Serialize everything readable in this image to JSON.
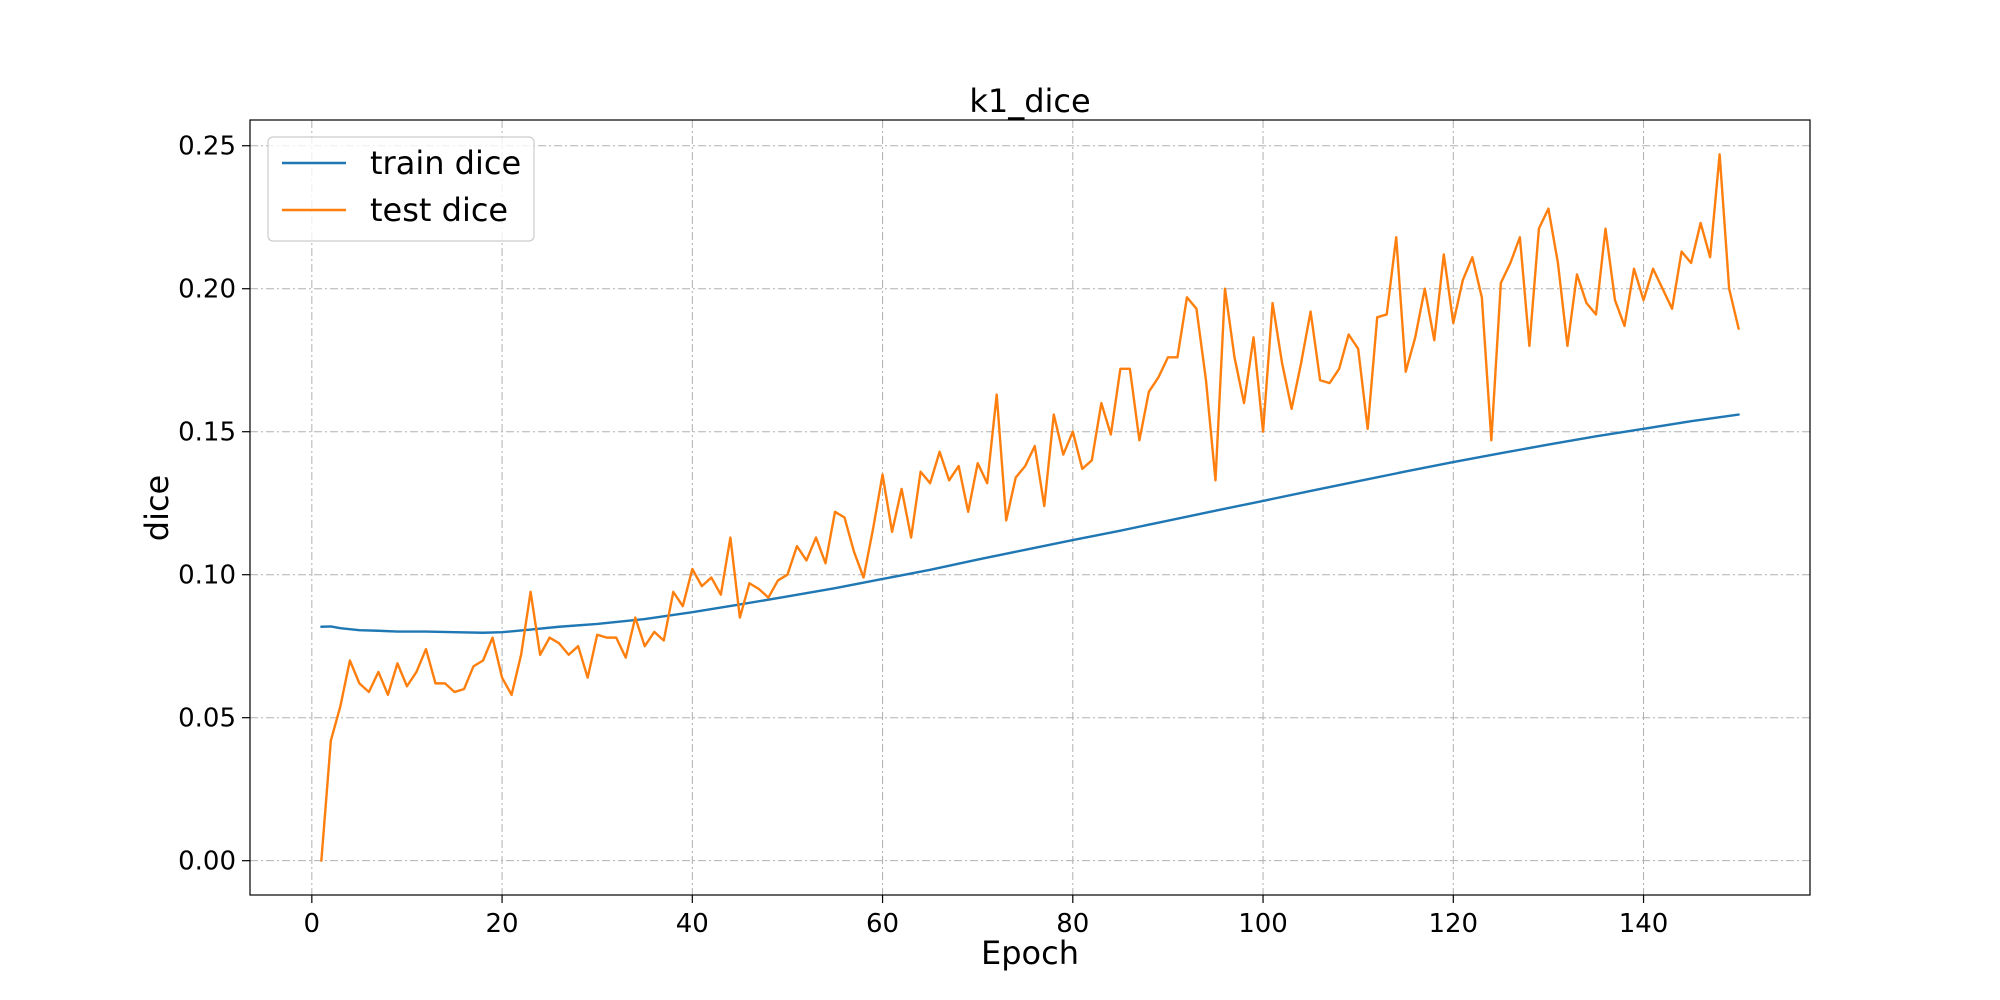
{
  "chart_data": {
    "type": "line",
    "title": "k1_dice",
    "xlabel": "Epoch",
    "ylabel": "dice",
    "xlim": [
      -6.5,
      157.5
    ],
    "ylim": [
      -0.012,
      0.259
    ],
    "xticks": [
      0,
      20,
      40,
      60,
      80,
      100,
      120,
      140
    ],
    "xtick_labels": [
      "0",
      "20",
      "40",
      "60",
      "80",
      "100",
      "120",
      "140"
    ],
    "yticks": [
      0.0,
      0.05,
      0.1,
      0.15,
      0.2,
      0.25
    ],
    "ytick_labels": [
      "0.00",
      "0.05",
      "0.10",
      "0.15",
      "0.20",
      "0.25"
    ],
    "grid": true,
    "legend_position": "top-left",
    "series": [
      {
        "name": "train dice",
        "color": "#1f77b4",
        "x": [
          1,
          2,
          3,
          5,
          7,
          9,
          12,
          15,
          18,
          20,
          23,
          26,
          30,
          35,
          40,
          45,
          50,
          55,
          60,
          65,
          70,
          75,
          80,
          85,
          90,
          95,
          100,
          105,
          110,
          115,
          120,
          125,
          130,
          135,
          140,
          145,
          150
        ],
        "y": [
          0.0818,
          0.0819,
          0.0813,
          0.0806,
          0.0804,
          0.0801,
          0.0801,
          0.0799,
          0.0797,
          0.0799,
          0.0808,
          0.0818,
          0.0828,
          0.0845,
          0.0869,
          0.0896,
          0.0924,
          0.0953,
          0.0985,
          0.1017,
          0.1053,
          0.1087,
          0.1121,
          0.1154,
          0.1189,
          0.1224,
          0.1258,
          0.1293,
          0.1327,
          0.1361,
          0.1394,
          0.1425,
          0.1455,
          0.1484,
          0.151,
          0.1537,
          0.156
        ]
      },
      {
        "name": "test dice",
        "color": "#ff7f0e",
        "x": [
          1,
          2,
          3,
          4,
          5,
          6,
          7,
          8,
          9,
          10,
          11,
          12,
          13,
          14,
          15,
          16,
          17,
          18,
          19,
          20,
          21,
          22,
          23,
          24,
          25,
          26,
          27,
          28,
          29,
          30,
          31,
          32,
          33,
          34,
          35,
          36,
          37,
          38,
          39,
          40,
          41,
          42,
          43,
          44,
          45,
          46,
          47,
          48,
          49,
          50,
          51,
          52,
          53,
          54,
          55,
          56,
          57,
          58,
          59,
          60,
          61,
          62,
          63,
          64,
          65,
          66,
          67,
          68,
          69,
          70,
          71,
          72,
          73,
          74,
          75,
          76,
          77,
          78,
          79,
          80,
          81,
          82,
          83,
          84,
          85,
          86,
          87,
          88,
          89,
          90,
          91,
          92,
          93,
          94,
          95,
          96,
          97,
          98,
          99,
          100,
          101,
          102,
          103,
          104,
          105,
          106,
          107,
          108,
          109,
          110,
          111,
          112,
          113,
          114,
          115,
          116,
          117,
          118,
          119,
          120,
          121,
          122,
          123,
          124,
          125,
          126,
          127,
          128,
          129,
          130,
          131,
          132,
          133,
          134,
          135,
          136,
          137,
          138,
          139,
          140,
          141,
          142,
          143,
          144,
          145,
          146,
          147,
          148,
          149,
          150
        ],
        "y": [
          0.0,
          0.042,
          0.054,
          0.07,
          0.062,
          0.059,
          0.066,
          0.058,
          0.069,
          0.061,
          0.066,
          0.074,
          0.062,
          0.062,
          0.059,
          0.06,
          0.068,
          0.07,
          0.078,
          0.064,
          0.058,
          0.072,
          0.094,
          0.072,
          0.078,
          0.076,
          0.072,
          0.075,
          0.064,
          0.079,
          0.078,
          0.078,
          0.071,
          0.085,
          0.075,
          0.08,
          0.077,
          0.094,
          0.089,
          0.102,
          0.096,
          0.099,
          0.093,
          0.113,
          0.085,
          0.097,
          0.095,
          0.092,
          0.098,
          0.1,
          0.11,
          0.105,
          0.113,
          0.104,
          0.122,
          0.12,
          0.108,
          0.099,
          0.116,
          0.135,
          0.115,
          0.13,
          0.113,
          0.136,
          0.132,
          0.143,
          0.133,
          0.138,
          0.122,
          0.139,
          0.132,
          0.163,
          0.119,
          0.134,
          0.138,
          0.145,
          0.124,
          0.156,
          0.142,
          0.15,
          0.137,
          0.14,
          0.16,
          0.149,
          0.172,
          0.172,
          0.147,
          0.164,
          0.169,
          0.176,
          0.176,
          0.197,
          0.193,
          0.168,
          0.133,
          0.2,
          0.176,
          0.16,
          0.183,
          0.15,
          0.195,
          0.174,
          0.158,
          0.174,
          0.192,
          0.168,
          0.167,
          0.172,
          0.184,
          0.179,
          0.151,
          0.19,
          0.191,
          0.218,
          0.171,
          0.183,
          0.2,
          0.182,
          0.212,
          0.188,
          0.203,
          0.211,
          0.197,
          0.147,
          0.202,
          0.209,
          0.218,
          0.18,
          0.221,
          0.228,
          0.209,
          0.18,
          0.205,
          0.195,
          0.191,
          0.221,
          0.196,
          0.187,
          0.207,
          0.196,
          0.207,
          0.2,
          0.193,
          0.213,
          0.209,
          0.223,
          0.211,
          0.247,
          0.2,
          0.186
        ]
      }
    ]
  }
}
